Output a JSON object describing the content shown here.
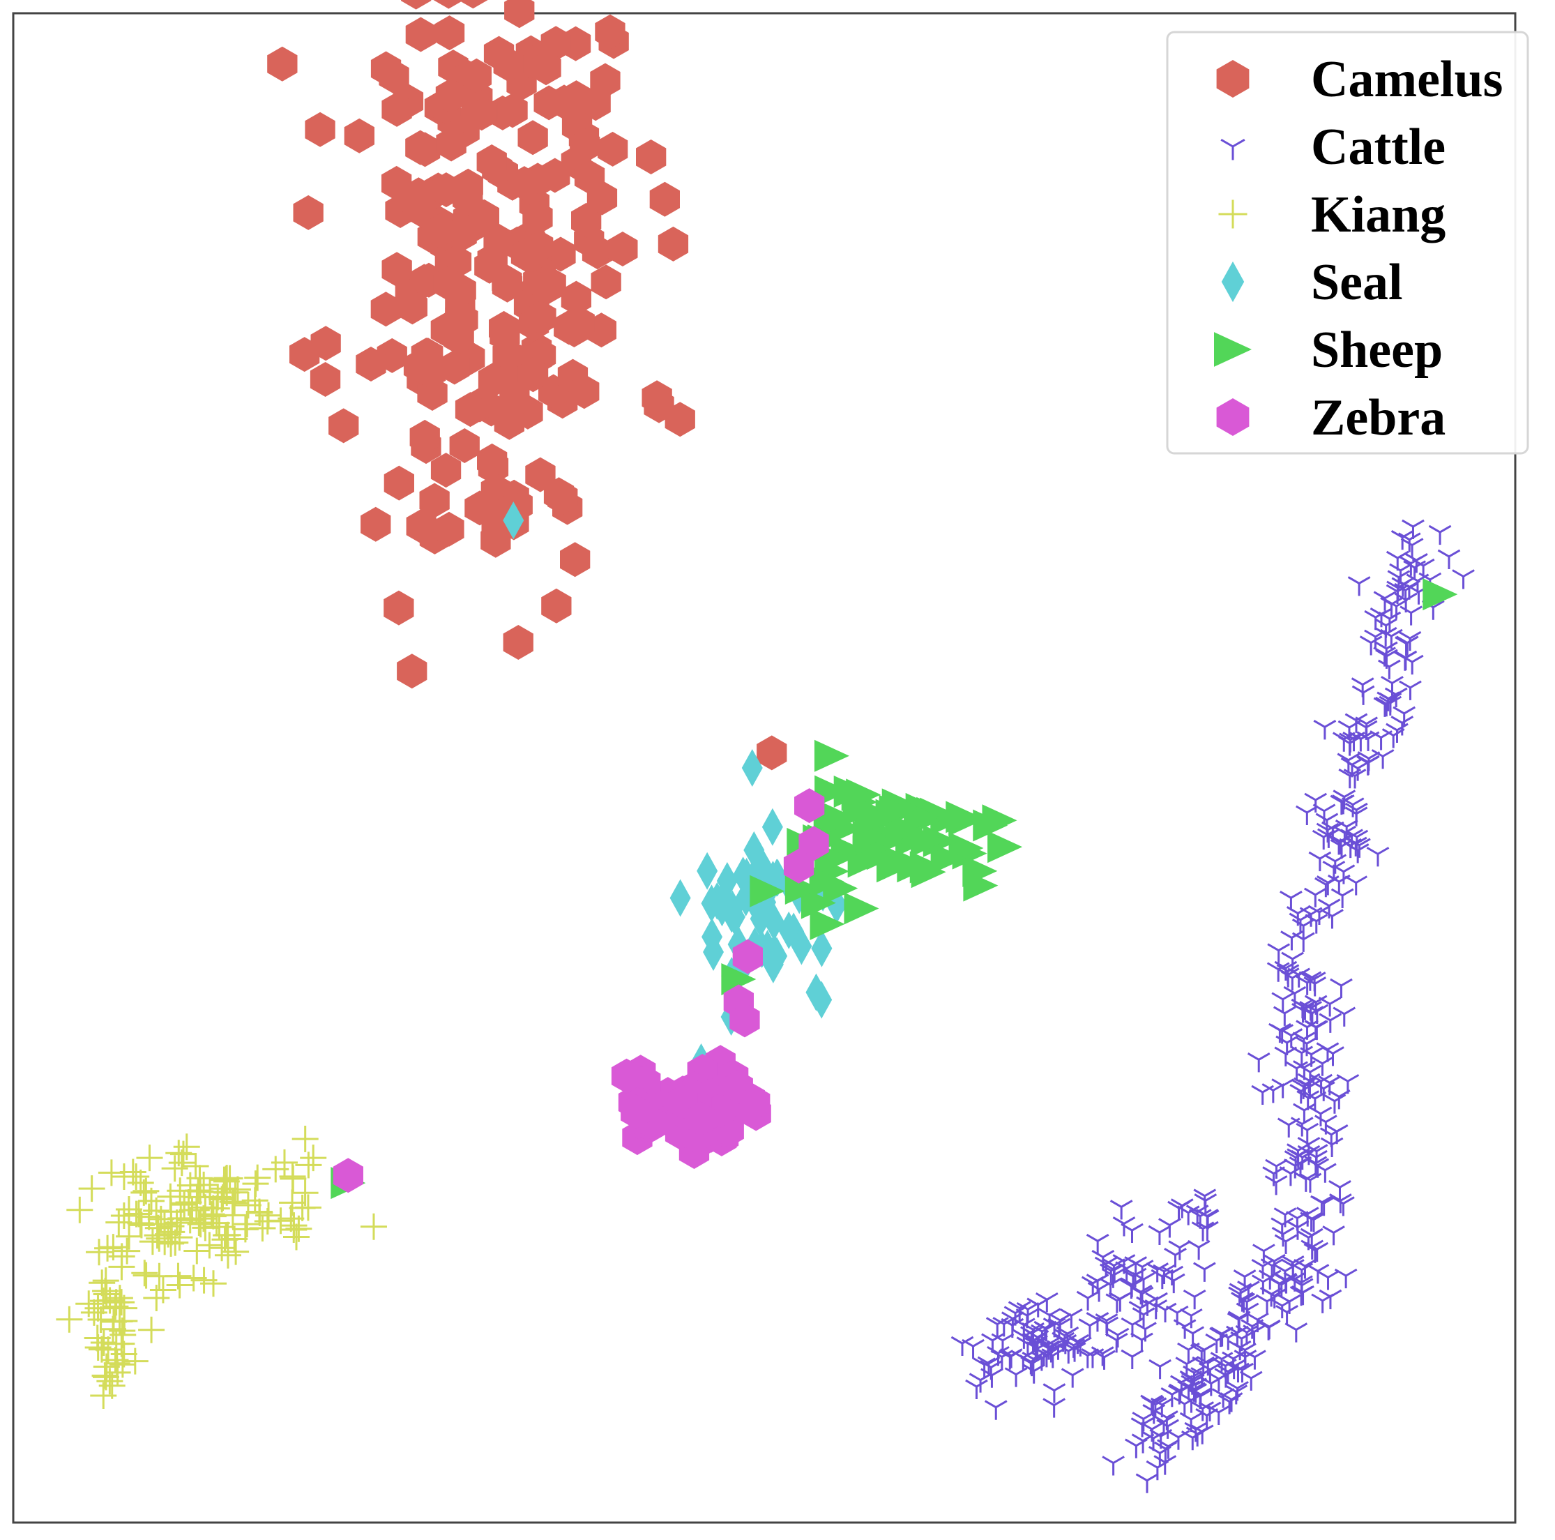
{
  "chart_data": {
    "type": "scatter",
    "title": "",
    "xlabel": "",
    "ylabel": "",
    "xlim": [
      0,
      100
    ],
    "ylim": [
      0,
      100
    ],
    "grid": false,
    "axis_ticks": false,
    "legend_position": "top-right",
    "series": [
      {
        "name": "Camelus",
        "color": "#d9645a",
        "marker": "hexagon",
        "clusters": [
          {
            "cx": 32.0,
            "cy": 86.0,
            "sx": 5.0,
            "sy": 12.0,
            "n": 210,
            "seed": 11
          },
          {
            "cx": 33.5,
            "cy": 66.0,
            "sx": 1.2,
            "sy": 1.2,
            "n": 6,
            "seed": 12
          }
        ],
        "points": [
          [
            50.5,
            51.0
          ]
        ]
      },
      {
        "name": "Cattle",
        "color": "#6a4fd6",
        "marker": "tri_down",
        "segments": [
          {
            "x0": 94.0,
            "y0": 65.5,
            "x1": 86.5,
            "y1": 39.0,
            "jx": 1.1,
            "jy": 0.8,
            "n": 130,
            "seed": 21
          },
          {
            "x0": 86.5,
            "y0": 37.0,
            "x1": 85.5,
            "y1": 18.0,
            "jx": 1.2,
            "jy": 0.8,
            "n": 110,
            "seed": 22
          },
          {
            "x0": 86.0,
            "y0": 17.0,
            "x1": 75.0,
            "y1": 4.0,
            "jx": 1.3,
            "jy": 1.0,
            "n": 130,
            "seed": 23
          }
        ],
        "clusters": [
          {
            "cx": 68.0,
            "cy": 11.5,
            "sx": 2.4,
            "sy": 1.6,
            "n": 80,
            "seed": 24
          },
          {
            "cx": 75.5,
            "cy": 16.0,
            "sx": 2.0,
            "sy": 1.8,
            "n": 55,
            "seed": 25
          },
          {
            "cx": 79.0,
            "cy": 21.0,
            "sx": 0.7,
            "sy": 0.7,
            "n": 8,
            "seed": 26
          }
        ],
        "points": [
          [
            67.0,
            14.2
          ],
          [
            78.0,
            13.0
          ],
          [
            79.5,
            19.5
          ]
        ]
      },
      {
        "name": "Kiang",
        "color": "#d4dc5a",
        "marker": "plus",
        "clusters": [
          {
            "cx": 13.0,
            "cy": 21.0,
            "sx": 4.0,
            "sy": 1.8,
            "n": 110,
            "seed": 31
          },
          {
            "cx": 6.5,
            "cy": 13.5,
            "sx": 1.0,
            "sy": 2.3,
            "n": 45,
            "seed": 32
          },
          {
            "cx": 10.0,
            "cy": 17.5,
            "sx": 1.8,
            "sy": 1.5,
            "n": 25,
            "seed": 33
          }
        ]
      },
      {
        "name": "Seal",
        "color": "#5fd0d6",
        "marker": "thin_diamond",
        "clusters": [
          {
            "cx": 50.5,
            "cy": 40.5,
            "sx": 2.6,
            "sy": 2.3,
            "n": 50,
            "seed": 41
          }
        ],
        "points": [
          [
            33.3,
            66.4
          ],
          [
            49.2,
            50.0
          ],
          [
            47.8,
            33.5
          ],
          [
            45.8,
            30.5
          ]
        ]
      },
      {
        "name": "Sheep",
        "color": "#52d658",
        "marker": "triangle_right",
        "clusters": [
          {
            "cx": 58.5,
            "cy": 45.5,
            "sx": 3.8,
            "sy": 1.6,
            "n": 55,
            "seed": 51
          },
          {
            "cx": 54.0,
            "cy": 42.0,
            "sx": 1.5,
            "sy": 1.2,
            "n": 8,
            "seed": 52
          }
        ],
        "points": [
          [
            95.0,
            61.5
          ],
          [
            22.3,
            22.5
          ],
          [
            48.3,
            36.0
          ],
          [
            54.5,
            50.8
          ]
        ]
      },
      {
        "name": "Zebra",
        "color": "#d959d6",
        "marker": "hexagon",
        "clusters": [
          {
            "cx": 45.0,
            "cy": 27.5,
            "sx": 2.4,
            "sy": 1.6,
            "n": 65,
            "seed": 61
          }
        ],
        "points": [
          [
            53.0,
            47.5
          ],
          [
            53.3,
            45.0
          ],
          [
            52.3,
            43.5
          ],
          [
            48.9,
            37.5
          ],
          [
            48.3,
            34.5
          ],
          [
            48.7,
            33.3
          ],
          [
            22.3,
            23.0
          ]
        ]
      }
    ]
  }
}
